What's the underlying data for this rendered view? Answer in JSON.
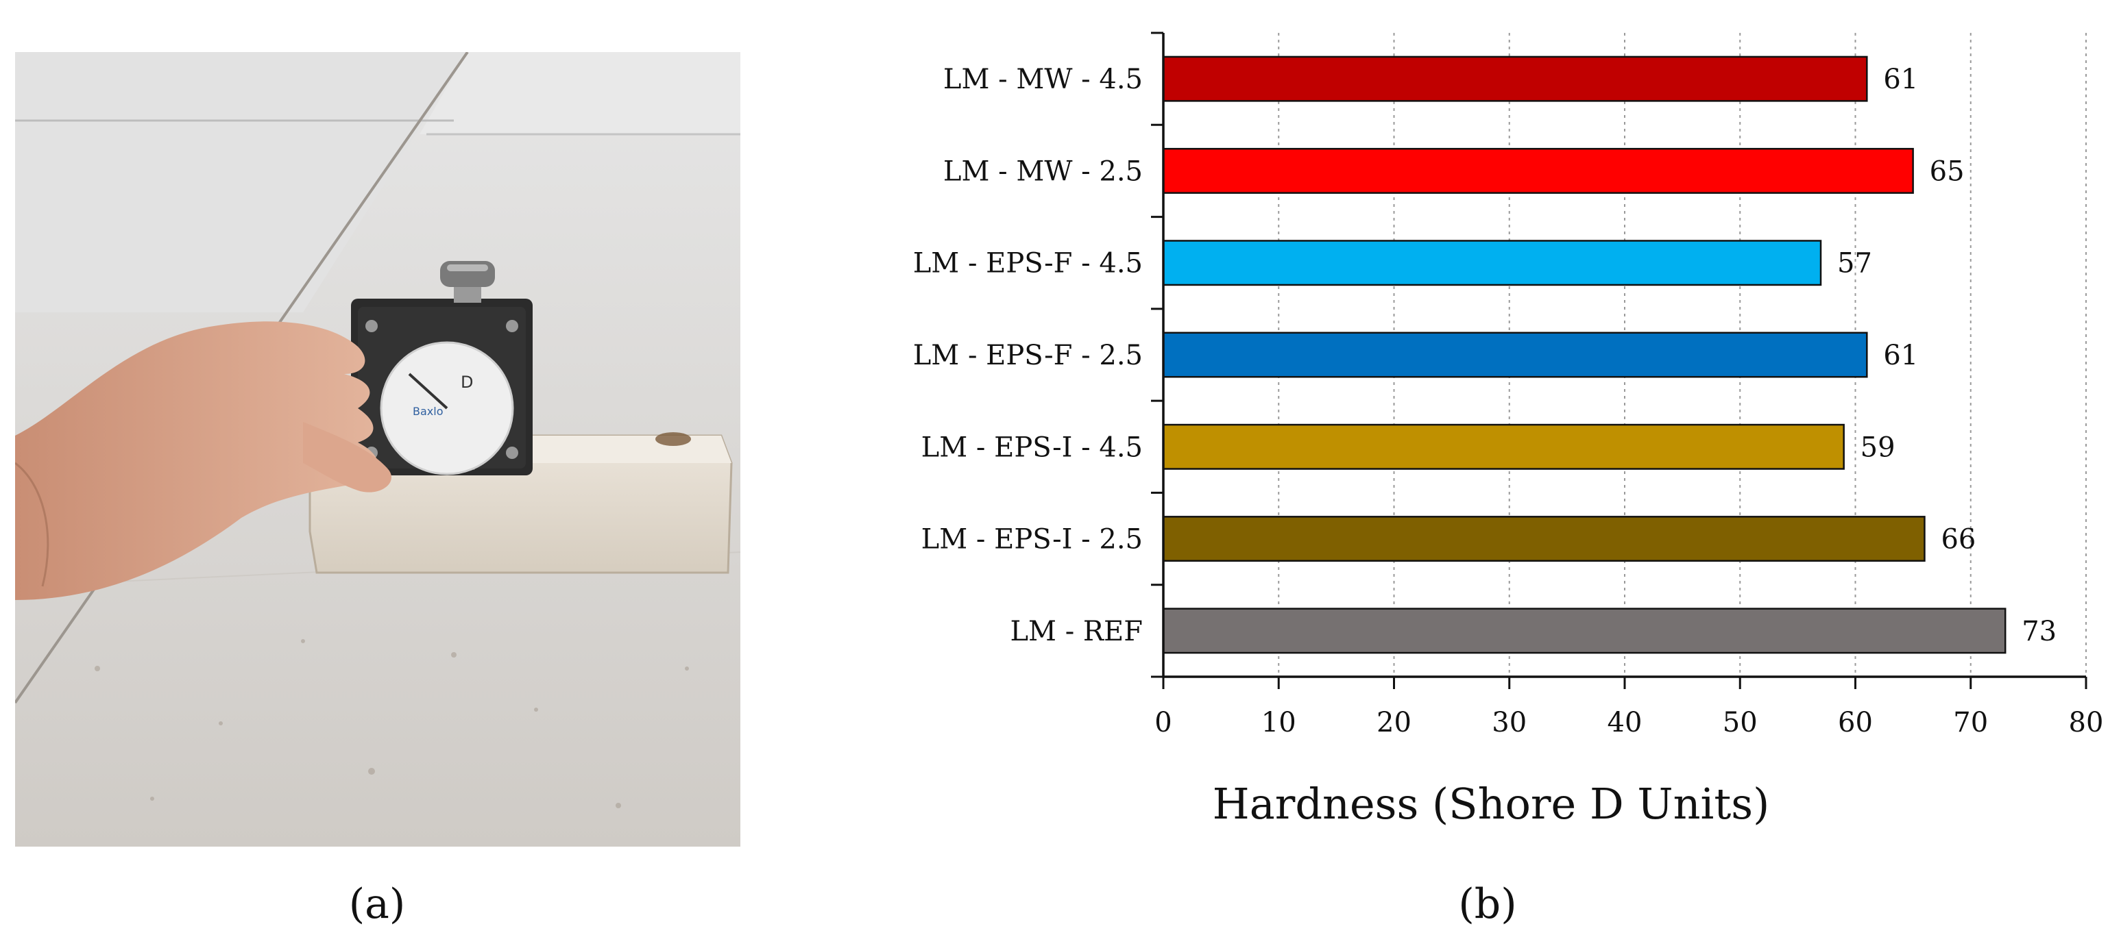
{
  "panels": {
    "a_label": "(a)",
    "b_label": "(b)"
  },
  "photo": {
    "description_icon": "shore-durometer-photo-icon",
    "dial_letter": "D",
    "dial_brand": "Baxlo"
  },
  "chart_data": {
    "type": "bar",
    "orientation": "horizontal",
    "categories": [
      "LM - MW - 4.5",
      "LM - MW - 2.5",
      "LM - EPS-F - 4.5",
      "LM - EPS-F - 2.5",
      "LM - EPS-I - 4.5",
      "LM - EPS-I - 2.5",
      "LM - REF"
    ],
    "values": [
      61,
      65,
      57,
      61,
      59,
      66,
      73
    ],
    "data_labels": [
      "61",
      "65",
      "57",
      "61",
      "59",
      "66",
      "73"
    ],
    "colors": [
      "#c00000",
      "#ff0000",
      "#00b0f0",
      "#0070c0",
      "#bf9000",
      "#7f6000",
      "#767171"
    ],
    "xlabel": "Hardness (Shore D Units)",
    "ylabel": "",
    "xlim": [
      0,
      80
    ],
    "xticks": [
      "0",
      "10",
      "20",
      "30",
      "40",
      "50",
      "60",
      "70",
      "80"
    ],
    "grid": "vertical dotted",
    "legend": "none"
  }
}
